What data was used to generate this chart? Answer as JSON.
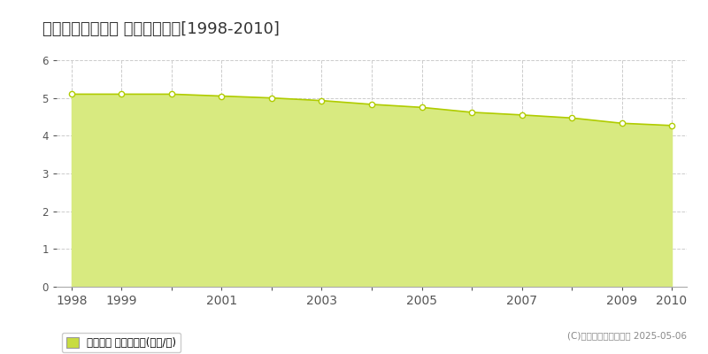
{
  "title": "双葉郡大熊町熊川 基準地価推移[1998-2010]",
  "years": [
    1998,
    1999,
    2000,
    2001,
    2002,
    2003,
    2004,
    2005,
    2006,
    2007,
    2008,
    2009,
    2010
  ],
  "values": [
    5.1,
    5.1,
    5.1,
    5.05,
    5.0,
    4.93,
    4.83,
    4.75,
    4.62,
    4.55,
    4.47,
    4.33,
    4.27
  ],
  "line_color": "#b0cc00",
  "fill_color": "#d8ea80",
  "fill_alpha": 1.0,
  "marker_color": "white",
  "marker_edge_color": "#b0cc00",
  "background_color": "#ffffff",
  "plot_bg_color": "#ffffff",
  "grid_color": "#cccccc",
  "ylim": [
    0,
    6
  ],
  "yticks": [
    0,
    1,
    2,
    3,
    4,
    5,
    6
  ],
  "xtick_labels": [
    "1998",
    "1999",
    "",
    "2001",
    "",
    "2003",
    "",
    "2005",
    "",
    "2007",
    "",
    "2009",
    "2010"
  ],
  "title_fontsize": 13,
  "legend_label": "基準地価 平均坪単価(万円/坪)",
  "copyright_text": "(C)土地価格ドットコム 2025-05-06",
  "legend_color": "#c8dc40",
  "tick_color": "#555555",
  "spine_color": "#aaaaaa"
}
